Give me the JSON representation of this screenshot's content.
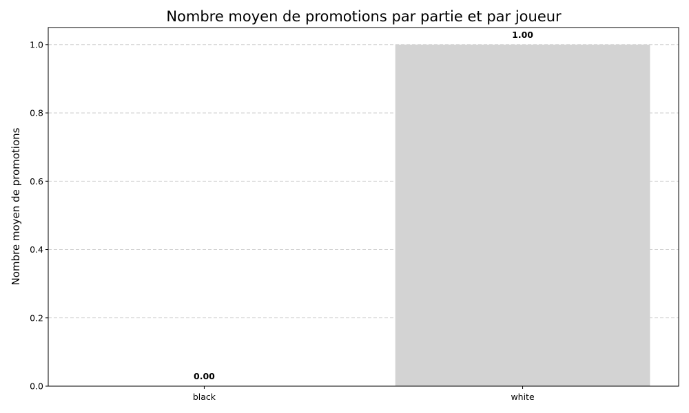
{
  "chart_data": {
    "type": "bar",
    "title": "Nombre moyen de promotions par partie et par joueur",
    "xlabel": "",
    "ylabel": "Nombre moyen de promotions",
    "categories": [
      "black",
      "white"
    ],
    "values": [
      0.0,
      1.0
    ],
    "value_labels": [
      "0.00",
      "1.00"
    ],
    "ylim": [
      0,
      1.05
    ],
    "yticks": [
      0.0,
      0.2,
      0.4,
      0.6,
      0.8,
      1.0
    ],
    "ytick_labels": [
      "0.0",
      "0.2",
      "0.4",
      "0.6",
      "0.8",
      "1.0"
    ],
    "grid": "y-dashed",
    "bar_color": "#d3d3d3"
  }
}
